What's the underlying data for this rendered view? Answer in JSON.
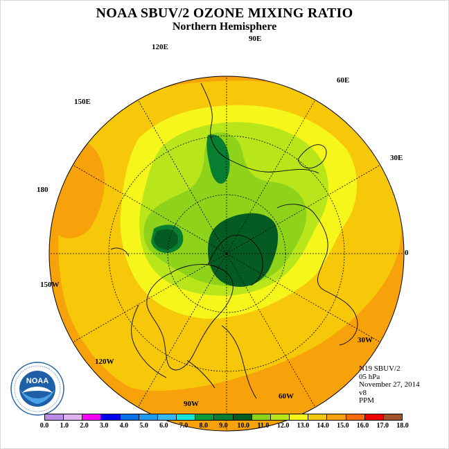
{
  "title": "NOAA SBUV/2 OZONE MIXING RATIO",
  "subtitle": "Northern Hemisphere",
  "longitude_labels": {
    "e90": "90E",
    "e60": "60E",
    "e30": "30E",
    "zero": "0",
    "w30": "30W",
    "w60": "60W",
    "w90": "90W",
    "w120": "120W",
    "w150": "150W",
    "d180": "180",
    "e150": "150E",
    "e120": "120E"
  },
  "info": {
    "instrument": "N19 SBUV/2",
    "level": "05 hPa",
    "date": "November 27, 2014",
    "version": "v8",
    "units": "PPM"
  },
  "logo": {
    "text": "NOAA",
    "ring_text": "NATIONAL OCEANIC AND ATMOSPHERIC ADMINISTRATION · U.S. DEPARTMENT OF COMMERCE"
  },
  "colorbar": {
    "ticks": [
      "0.0",
      "1.0",
      "2.0",
      "3.0",
      "4.0",
      "5.0",
      "6.0",
      "7.0",
      "8.0",
      "9.0",
      "10.0",
      "11.0",
      "12.0",
      "13.0",
      "14.0",
      "15.0",
      "16.0",
      "17.0",
      "18.0"
    ],
    "colors": [
      "#b98ce6",
      "#e0b2f0",
      "#ff00ff",
      "#0000ee",
      "#0c6fe6",
      "#1e9bef",
      "#35b9f0",
      "#16e4d6",
      "#0a9a3a",
      "#087e30",
      "#055c22",
      "#8ed31a",
      "#b8e61a",
      "#f6f61a",
      "#f7c80a",
      "#f7a20a",
      "#f76a0a",
      "#f20000",
      "#a0522d"
    ]
  },
  "map_legend": {
    "colors": {
      "yellow": "#f6f61a",
      "yellow_green": "#b8e61a",
      "light_green": "#8ed31a",
      "dark_green": "#087e30",
      "darker_green": "#055c22",
      "orange": "#f7a20a",
      "light_orange": "#f7c80a"
    }
  }
}
